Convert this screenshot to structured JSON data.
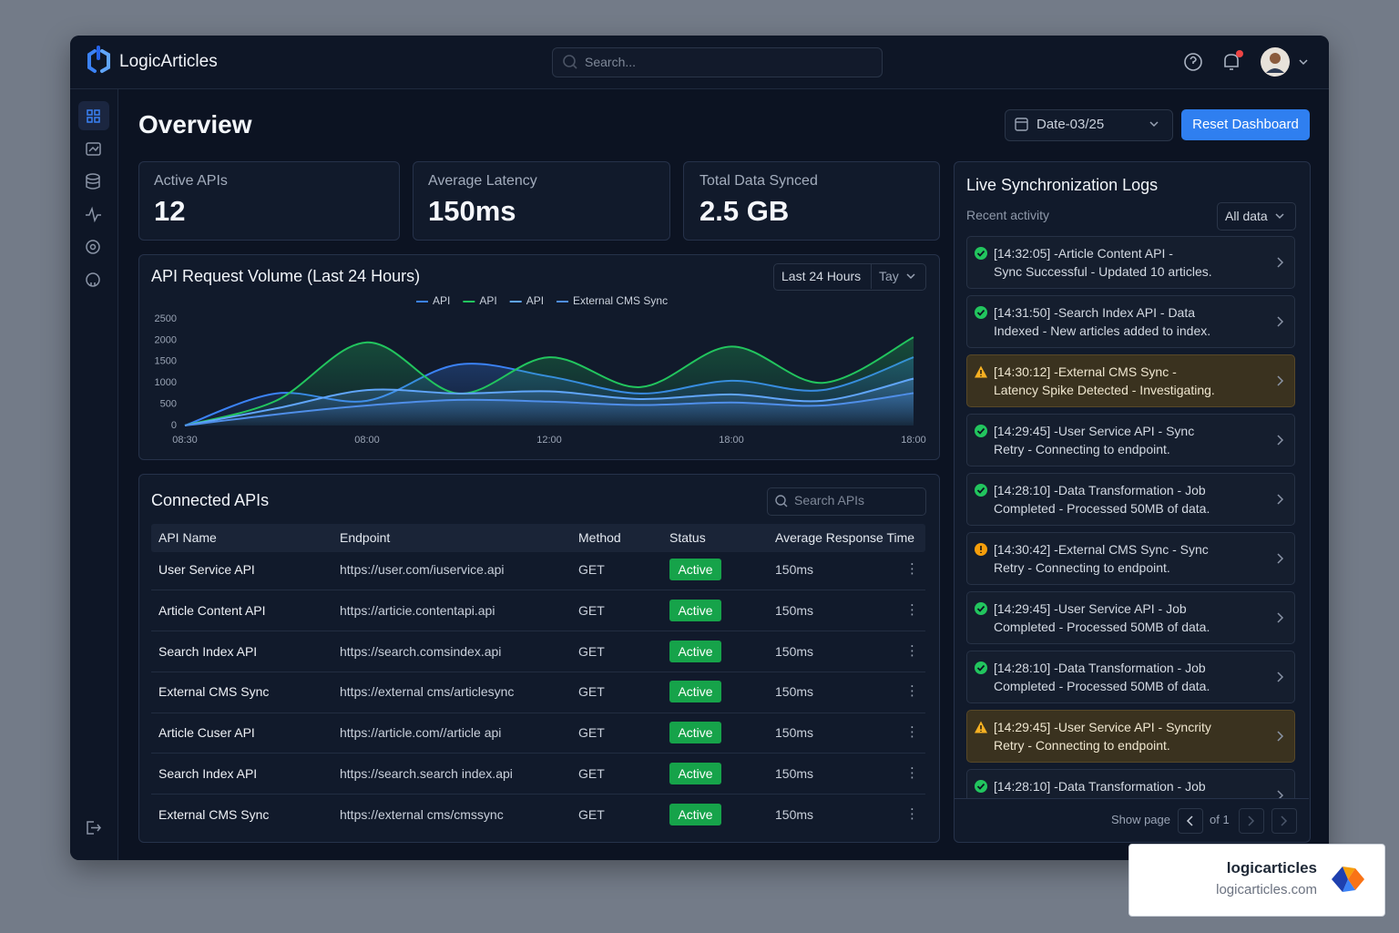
{
  "header": {
    "brand": "LogicArticles",
    "search_placeholder": "Search..."
  },
  "page": {
    "title": "Overview",
    "date_filter": "Date-03/25",
    "reset_button": "Reset Dashboard"
  },
  "kpis": [
    {
      "label": "Active APIs",
      "value": "12"
    },
    {
      "label": "Average Latency",
      "value": "150ms"
    },
    {
      "label": "Total Data Synced",
      "value": "2.5 GB"
    }
  ],
  "chart_panel": {
    "range_options": [
      "Last 24 Hours",
      "Tay"
    ]
  },
  "chart_data": {
    "type": "line",
    "title": "API Request Volume (Last 24 Hours)",
    "categories": [
      "08:30",
      null,
      "08:00",
      null,
      "12:00",
      null,
      "18:00",
      null,
      "18:00"
    ],
    "series": [
      {
        "name": "API",
        "color": "#3b82f6",
        "values": [
          0,
          750,
          580,
          1430,
          1150,
          750,
          1050,
          830,
          1600
        ]
      },
      {
        "name": "API",
        "color": "#22c55e",
        "values": [
          0,
          580,
          1950,
          750,
          1600,
          900,
          1850,
          1000,
          2070
        ]
      },
      {
        "name": "API",
        "color": "#60a5fa",
        "values": [
          0,
          400,
          830,
          750,
          800,
          620,
          730,
          580,
          1100
        ]
      },
      {
        "name": "External CMS Sync",
        "color": "#4f8ee8",
        "values": [
          0,
          260,
          470,
          600,
          560,
          480,
          540,
          470,
          760
        ]
      }
    ],
    "ylim": [
      0,
      2500
    ],
    "yticks": [
      0,
      500,
      1000,
      1500,
      2000,
      2500
    ],
    "grid": false,
    "area": true
  },
  "table": {
    "title": "Connected APIs",
    "search_placeholder": "Search APIs",
    "columns": [
      "API Name",
      "Endpoint",
      "Method",
      "Status",
      "Average Response Time"
    ],
    "rows": [
      [
        "User Service API",
        "https://user.com/iuservice.api",
        "GET",
        "Active",
        "150ms"
      ],
      [
        "Article Content API",
        "https://articie.contentapi.api",
        "GET",
        "Active",
        "150ms"
      ],
      [
        "Search Index API",
        "https://search.comsindex.api",
        "GET",
        "Active",
        "150ms"
      ],
      [
        "External CMS Sync",
        "https://external cms/articlesync",
        "GET",
        "Active",
        "150ms"
      ],
      [
        "Article Cuser API",
        "https://article.com//article api",
        "GET",
        "Active",
        "150ms"
      ],
      [
        "Search Index API",
        "https://search.search index.api",
        "GET",
        "Active",
        "150ms"
      ],
      [
        "External CMS Sync",
        "https://external cms/cmssync",
        "GET",
        "Active",
        "150ms"
      ]
    ]
  },
  "logs": {
    "title": "Live Synchronization Logs",
    "subtitle": "Recent activity",
    "filter": "All data",
    "entries": [
      {
        "status": "success",
        "lines": [
          "[14:32:05] -Article Content API -",
          "Sync Successful - Updated 10 articles."
        ]
      },
      {
        "status": "success",
        "lines": [
          "[14:31:50] -Search Index API - Data",
          "Indexed - New articles added to index."
        ]
      },
      {
        "status": "warning",
        "lines": [
          "[14:30:12] -External CMS Sync -",
          "Latency Spike Detected - Investigating."
        ]
      },
      {
        "status": "success",
        "lines": [
          "[14:29:45] -User Service API - Sync",
          "Retry - Connecting to endpoint."
        ]
      },
      {
        "status": "success",
        "lines": [
          "[14:28:10] -Data Transformation - Job",
          "Completed - Processed 50MB of data."
        ]
      },
      {
        "status": "pending",
        "lines": [
          "[14:30:42] -External CMS Sync - Sync",
          "Retry - Connecting to endpoint."
        ]
      },
      {
        "status": "success",
        "lines": [
          "[14:29:45] -User Service API - Job",
          "Completed - Processed 50MB of data."
        ]
      },
      {
        "status": "success",
        "lines": [
          "[14:28:10] -Data Transformation - Job",
          "Completed - Processed 50MB of data."
        ]
      },
      {
        "status": "warning",
        "lines": [
          "[14:29:45] -User Service API - Syncrity",
          "Retry - Connecting to endpoint."
        ]
      },
      {
        "status": "success",
        "lines": [
          "[14:28:10] -Data Transformation - Job"
        ]
      }
    ],
    "pagination": {
      "label": "Show page",
      "total": "of 1"
    }
  },
  "watermark": {
    "name": "logicarticles",
    "url": "logicarticles.com"
  }
}
